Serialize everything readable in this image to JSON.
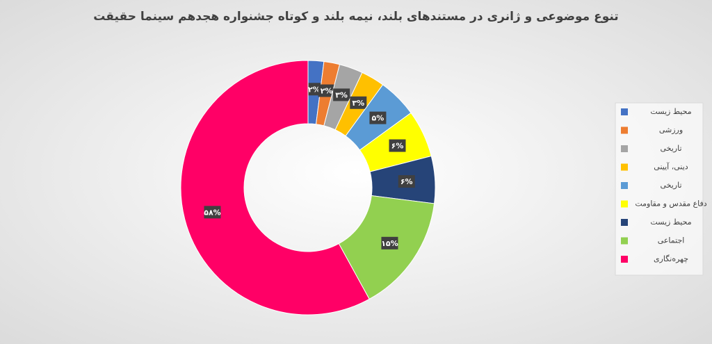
{
  "chart_data": {
    "type": "donut",
    "title": "تنوع موضوعی و ژانری در مستندهای بلند، نیمه بلند و کوتاه جشنواره هجدهم سینما حقیقت",
    "categories": [
      "محیط زیست",
      "ورزشی",
      "تاریخی",
      "دینی، آیینی",
      "تاریخی",
      "دفاع مقدس و مقاومت",
      "محیط زیست",
      "اجتماعی",
      "چهره‌نگاری"
    ],
    "values": [
      2,
      2,
      3,
      3,
      5,
      6,
      6,
      15,
      58
    ],
    "value_labels": [
      "۲%",
      "۲%",
      "۳%",
      "۳%",
      "۵%",
      "۶%",
      "۶%",
      "۱۵%",
      "۵۸%"
    ],
    "colors": [
      "#4472c4",
      "#ed7d31",
      "#a5a5a5",
      "#ffc000",
      "#5b9bd5",
      "#ffff00",
      "#264478",
      "#92d050",
      "#ff0066"
    ],
    "legend": "right"
  }
}
